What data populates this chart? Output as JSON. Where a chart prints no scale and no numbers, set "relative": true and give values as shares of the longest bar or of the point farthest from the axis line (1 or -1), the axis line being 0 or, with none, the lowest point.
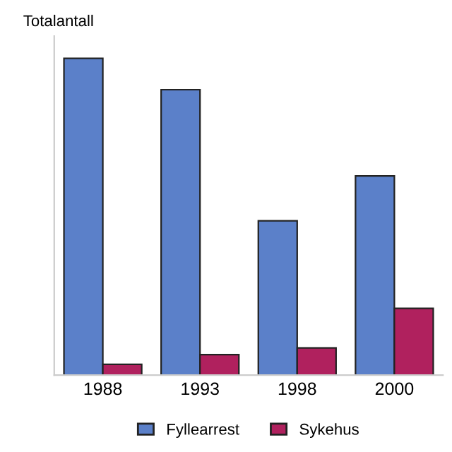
{
  "chart_data": {
    "type": "bar",
    "ylabel": "Totalantall",
    "relative": true,
    "categories": [
      "1988",
      "1993",
      "1998",
      "2000"
    ],
    "series": [
      {
        "name": "Fyllearrest",
        "color": "#5b80c9",
        "values": [
          1,
          0.901,
          0.487,
          0.629
        ]
      },
      {
        "name": "Sykehus",
        "color": "#b0215e",
        "values": [
          0.034,
          0.065,
          0.086,
          0.211
        ]
      }
    ],
    "legend": "bottom",
    "grid": false
  }
}
